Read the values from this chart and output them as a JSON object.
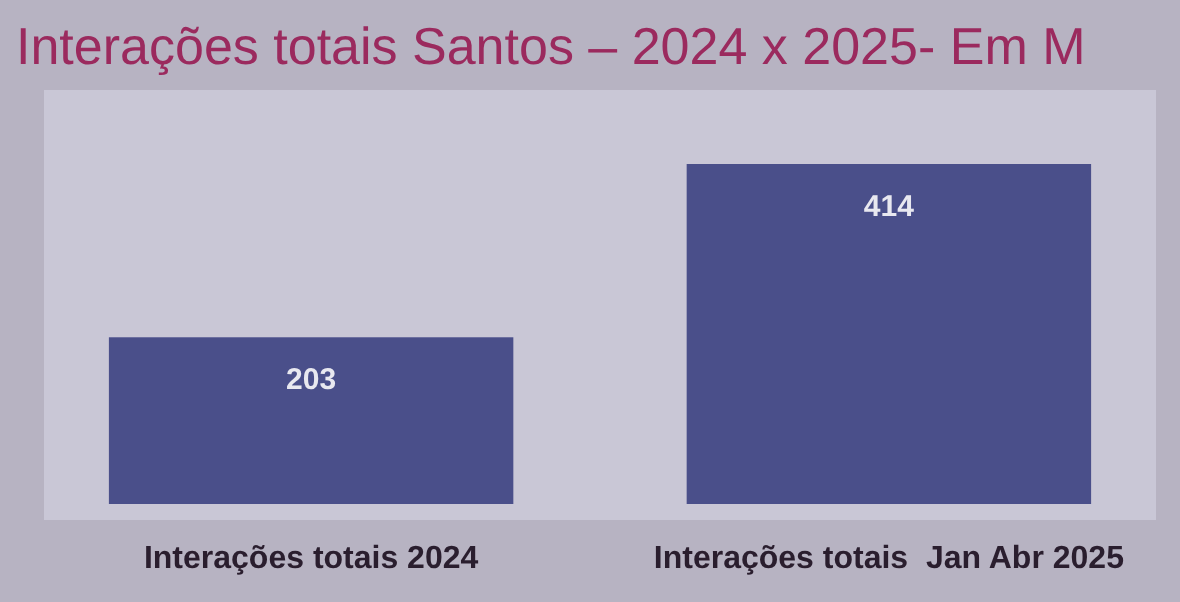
{
  "chart_data": {
    "type": "bar",
    "title": "Interações totais Santos – 2024 x 2025- Em M",
    "categories": [
      "Interações totais 2024",
      "Interações totais  Jan Abr 2025"
    ],
    "values": [
      203,
      414
    ],
    "color": "#4a4f8a",
    "data_labels": true
  }
}
